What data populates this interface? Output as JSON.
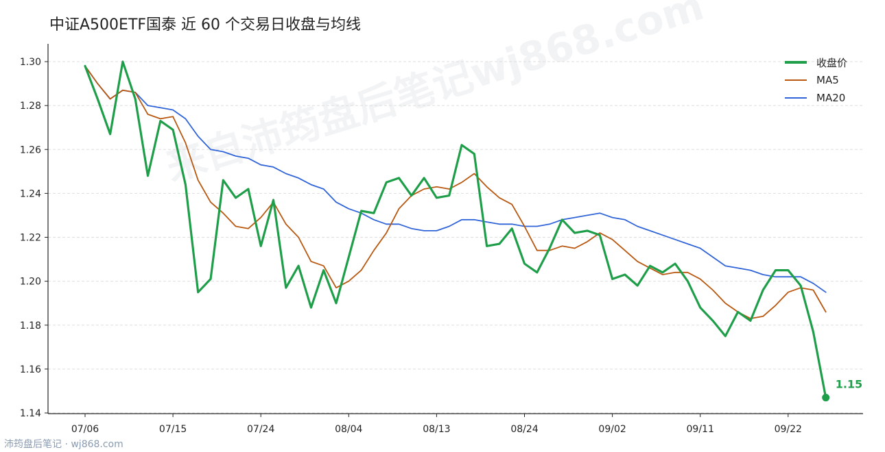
{
  "watermark": "来自沛筠盘后笔记wj868.com",
  "footer": "沛筠盘后笔记 · wj868.com",
  "colors": {
    "close": "#1f9e4a",
    "ma5": "#b8570f",
    "ma20": "#2f63d8",
    "grid": "#dedede",
    "axis": "#222222"
  },
  "chart_data": {
    "type": "line",
    "title": "中证A500ETF国泰 近 60 个交易日收盘与均线",
    "xlabel": "",
    "ylabel": "",
    "ylim": [
      1.14,
      1.3
    ],
    "y_ticks": [
      1.14,
      1.16,
      1.18,
      1.2,
      1.22,
      1.24,
      1.26,
      1.28,
      1.3
    ],
    "x_tick_labels": [
      "07/06",
      "07/15",
      "07/24",
      "08/04",
      "08/13",
      "08/24",
      "09/02",
      "09/11",
      "09/22"
    ],
    "x_tick_index": [
      0,
      7,
      14,
      21,
      28,
      35,
      42,
      49,
      56
    ],
    "grid": true,
    "legend_position": "top-right",
    "end_label": "1.15",
    "series": [
      {
        "name": "收盘价",
        "values": [
          1.298,
          1.283,
          1.267,
          1.3,
          1.283,
          1.248,
          1.273,
          1.269,
          1.244,
          1.195,
          1.201,
          1.246,
          1.238,
          1.242,
          1.216,
          1.237,
          1.197,
          1.207,
          1.188,
          1.205,
          1.19,
          1.211,
          1.232,
          1.231,
          1.245,
          1.247,
          1.239,
          1.247,
          1.238,
          1.239,
          1.262,
          1.258,
          1.216,
          1.217,
          1.224,
          1.208,
          1.204,
          1.215,
          1.228,
          1.222,
          1.223,
          1.221,
          1.201,
          1.203,
          1.198,
          1.207,
          1.204,
          1.208,
          1.2,
          1.188,
          1.182,
          1.175,
          1.186,
          1.182,
          1.196,
          1.205,
          1.205,
          1.198,
          1.177,
          1.147
        ]
      },
      {
        "name": "MA5",
        "values": [
          1.298,
          1.29,
          1.283,
          1.287,
          1.286,
          1.276,
          1.274,
          1.275,
          1.263,
          1.246,
          1.236,
          1.231,
          1.225,
          1.224,
          1.229,
          1.236,
          1.226,
          1.22,
          1.209,
          1.207,
          1.197,
          1.2,
          1.205,
          1.214,
          1.222,
          1.233,
          1.239,
          1.242,
          1.243,
          1.242,
          1.245,
          1.249,
          1.243,
          1.238,
          1.235,
          1.225,
          1.214,
          1.214,
          1.216,
          1.215,
          1.218,
          1.222,
          1.219,
          1.214,
          1.209,
          1.206,
          1.203,
          1.204,
          1.204,
          1.201,
          1.196,
          1.19,
          1.186,
          1.183,
          1.184,
          1.189,
          1.195,
          1.197,
          1.196,
          1.186
        ]
      },
      {
        "name": "MA20",
        "values": [
          1.298,
          1.29,
          1.283,
          1.287,
          1.286,
          1.28,
          1.279,
          1.278,
          1.274,
          1.266,
          1.26,
          1.259,
          1.257,
          1.256,
          1.253,
          1.252,
          1.249,
          1.247,
          1.244,
          1.242,
          1.236,
          1.233,
          1.231,
          1.228,
          1.226,
          1.226,
          1.224,
          1.223,
          1.223,
          1.225,
          1.228,
          1.228,
          1.227,
          1.226,
          1.226,
          1.225,
          1.225,
          1.226,
          1.228,
          1.229,
          1.23,
          1.231,
          1.229,
          1.228,
          1.225,
          1.223,
          1.221,
          1.219,
          1.217,
          1.215,
          1.211,
          1.207,
          1.206,
          1.205,
          1.203,
          1.202,
          1.202,
          1.202,
          1.199,
          1.195
        ]
      }
    ]
  }
}
